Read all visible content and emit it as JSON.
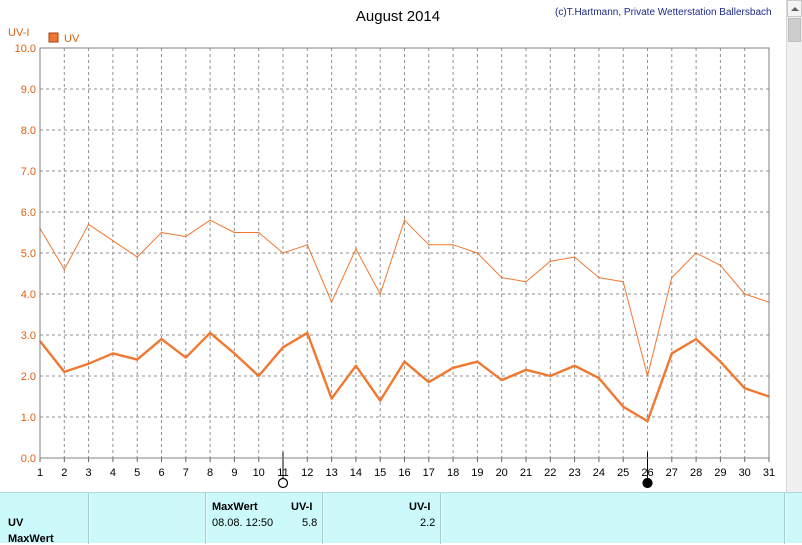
{
  "chart_data": {
    "type": "line",
    "title": "August 2014",
    "credit": "(c)T.Hartmann, Private Wetterstation Ballersbach",
    "ylabel": "UV-I",
    "legend": [
      "UV"
    ],
    "legend_placement": "top-left",
    "grid": true,
    "ylim": [
      0,
      10
    ],
    "xlim": [
      1,
      31
    ],
    "y_ticks": [
      "0.0",
      "1.0",
      "2.0",
      "3.0",
      "4.0",
      "5.0",
      "6.0",
      "7.0",
      "8.0",
      "9.0",
      "10.0"
    ],
    "categories": [
      "1",
      "2",
      "3",
      "4",
      "5",
      "6",
      "7",
      "8",
      "9",
      "10",
      "11",
      "12",
      "13",
      "14",
      "15",
      "16",
      "17",
      "18",
      "19",
      "20",
      "21",
      "22",
      "23",
      "24",
      "25",
      "26",
      "27",
      "28",
      "29",
      "30",
      "31"
    ],
    "series": [
      {
        "name": "UV",
        "color": "#f07830",
        "values": [
          5.6,
          4.6,
          5.7,
          5.3,
          4.9,
          5.5,
          5.4,
          5.8,
          5.5,
          5.5,
          5.0,
          5.2,
          3.8,
          5.1,
          4.0,
          5.8,
          5.2,
          5.2,
          5.0,
          4.4,
          4.3,
          4.8,
          4.9,
          4.4,
          4.3,
          2.0,
          4.4,
          5.0,
          4.7,
          4.0,
          3.8
        ]
      },
      {
        "name": "",
        "color": "#f07830",
        "values": [
          2.85,
          2.1,
          2.3,
          2.55,
          2.4,
          2.9,
          2.45,
          3.05,
          2.55,
          2.0,
          2.7,
          3.05,
          1.45,
          2.25,
          1.4,
          2.35,
          1.85,
          2.2,
          2.35,
          1.9,
          2.15,
          2.0,
          2.25,
          1.95,
          1.25,
          0.9,
          2.55,
          2.9,
          2.35,
          1.7,
          1.5
        ]
      }
    ],
    "moon_markers": [
      {
        "day": 11,
        "phase": "full-moon"
      },
      {
        "day": 26,
        "phase": "new-moon"
      }
    ]
  },
  "summary": {
    "row_label": "UV",
    "row_label2": "MaxWert",
    "max_header": "MaxWert",
    "unit_header": "UV-I",
    "max_datetime": "08.08.  12:50",
    "max_value": "5.8",
    "avg_header": "UV-I",
    "avg_value": "2.2"
  }
}
